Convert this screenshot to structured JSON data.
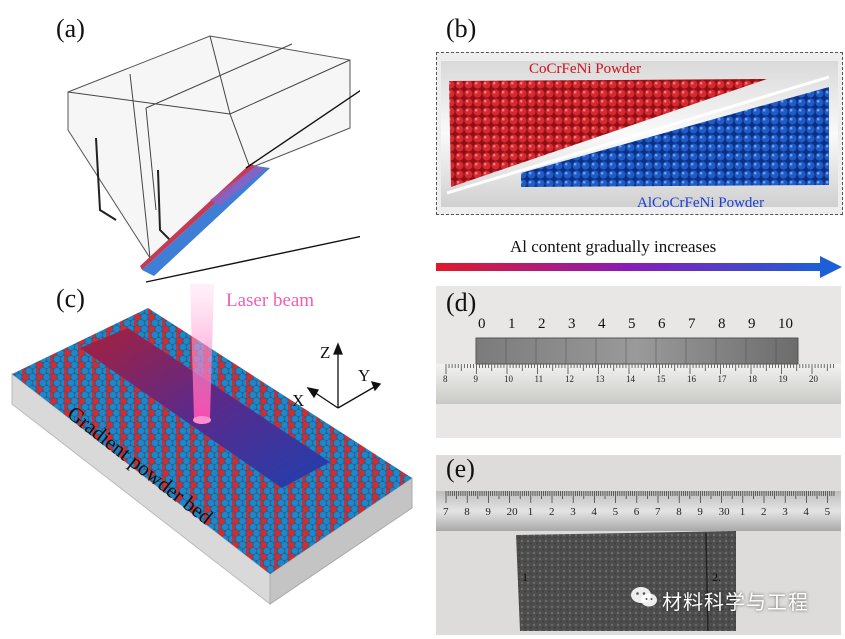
{
  "panels": {
    "a": {
      "label": "(a)"
    },
    "b": {
      "label": "(b)",
      "top_powder": "CoCrFeNi Powder",
      "bottom_powder": "AlCoCrFeNi Powder"
    },
    "c": {
      "label": "(c)",
      "laser": "Laser beam",
      "bed": "Gradient powder bed",
      "axes": {
        "z": "Z",
        "y": "Y",
        "x": "X"
      }
    },
    "d": {
      "label": "(d)",
      "sample_numbers": [
        "0",
        "1",
        "2",
        "3",
        "4",
        "5",
        "6",
        "7",
        "8",
        "9",
        "10"
      ],
      "ruler_numbers": [
        "8",
        "9",
        "10",
        "11",
        "12",
        "13",
        "14",
        "15",
        "16",
        "17",
        "18",
        "19",
        "20"
      ]
    },
    "e": {
      "label": "(e)",
      "ruler_numbers": [
        "7",
        "8",
        "9",
        "20",
        "1",
        "2",
        "3",
        "4",
        "5",
        "6",
        "7",
        "8",
        "9",
        "30",
        "1",
        "2",
        "3",
        "4",
        "5"
      ],
      "marks": [
        "1",
        "2."
      ]
    }
  },
  "gradient_arrow": {
    "label": "Al content gradually increases",
    "start_color": "#e0192a",
    "mid_color": "#8a1bb8",
    "end_color": "#1d5fd8"
  },
  "watermark": {
    "text": "材料科学与工程",
    "icon": "wechat-icon"
  },
  "colors": {
    "red_powder": "#d21f2a",
    "blue_powder": "#1f63c7",
    "label_red": "#d0101a",
    "label_blue": "#1a3fd0",
    "laser_pink": "#f25fb0"
  }
}
